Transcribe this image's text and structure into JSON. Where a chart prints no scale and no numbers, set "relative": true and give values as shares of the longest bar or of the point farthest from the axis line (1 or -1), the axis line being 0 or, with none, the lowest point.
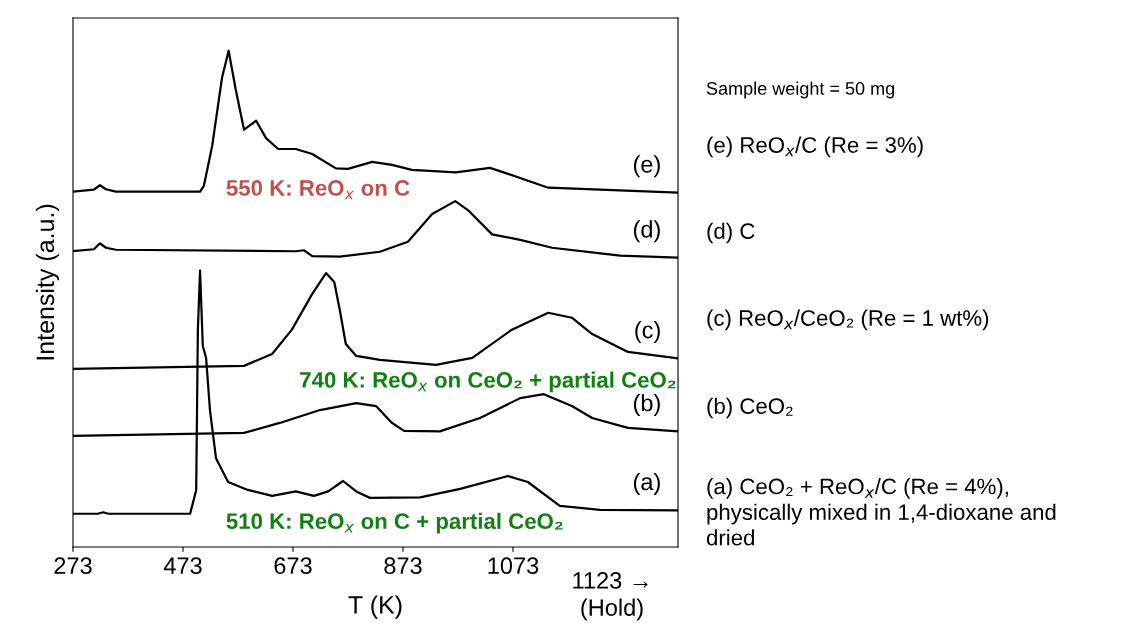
{
  "chart_data": {
    "type": "line",
    "relative": true,
    "xlabel": "T (K)",
    "ylabel": "Intensity (a.u.)",
    "xlim": [
      273,
      1373
    ],
    "xticks": [
      273,
      473,
      673,
      873,
      1073
    ],
    "grid": false,
    "marker": "none",
    "line_style": "solid",
    "series": [
      {
        "name": "(e)",
        "color": "#000000",
        "x": [
          273,
          311,
          322,
          333,
          351,
          504,
          511,
          526,
          544,
          556,
          569,
          584,
          606,
          624,
          646,
          678,
          708,
          751,
          773,
          817,
          853,
          889,
          969,
          1031,
          1064,
          1137,
          1373
        ],
        "values": [
          0.716,
          0.72,
          0.729,
          0.721,
          0.716,
          0.716,
          0.728,
          0.808,
          0.946,
          1.0,
          0.921,
          0.841,
          0.859,
          0.824,
          0.802,
          0.802,
          0.792,
          0.763,
          0.762,
          0.776,
          0.77,
          0.76,
          0.755,
          0.764,
          0.752,
          0.724,
          0.714
        ]
      },
      {
        "name": "(d)",
        "color": "#000000",
        "x": [
          273,
          311,
          322,
          333,
          351,
          678,
          693,
          708,
          758,
          831,
          882,
          926,
          968,
          991,
          1035,
          1086,
          1144,
          1268,
          1373
        ],
        "values": [
          0.596,
          0.6,
          0.612,
          0.603,
          0.599,
          0.596,
          0.598,
          0.586,
          0.585,
          0.595,
          0.615,
          0.671,
          0.697,
          0.679,
          0.63,
          0.619,
          0.603,
          0.587,
          0.583
        ]
      },
      {
        "name": "(c)",
        "color": "#000000",
        "x": [
          273,
          584,
          635,
          671,
          708,
          733,
          748,
          758,
          769,
          788,
          831,
          933,
          999,
          1071,
          1137,
          1180,
          1217,
          1282,
          1373
        ],
        "values": [
          0.359,
          0.365,
          0.389,
          0.438,
          0.51,
          0.552,
          0.534,
          0.478,
          0.409,
          0.385,
          0.377,
          0.367,
          0.381,
          0.438,
          0.472,
          0.462,
          0.429,
          0.393,
          0.38
        ]
      },
      {
        "name": "(b)",
        "color": "#000000",
        "x": [
          273,
          584,
          649,
          722,
          788,
          824,
          853,
          875,
          940,
          1013,
          1086,
          1129,
          1180,
          1217,
          1282,
          1373
        ],
        "values": [
          0.224,
          0.23,
          0.25,
          0.276,
          0.29,
          0.284,
          0.25,
          0.234,
          0.233,
          0.26,
          0.3,
          0.308,
          0.284,
          0.26,
          0.24,
          0.233
        ]
      },
      {
        "name": "(a)",
        "color": "#000000",
        "x": [
          273,
          318,
          328,
          337,
          486,
          497,
          500,
          504,
          509,
          515,
          522,
          533,
          555,
          591,
          635,
          678,
          711,
          737,
          764,
          788,
          813,
          904,
          977,
          1064,
          1100,
          1158,
          1231,
          1373
        ],
        "values": [
          0.067,
          0.067,
          0.07,
          0.067,
          0.067,
          0.115,
          0.437,
          0.557,
          0.405,
          0.381,
          0.276,
          0.179,
          0.131,
          0.115,
          0.103,
          0.112,
          0.103,
          0.112,
          0.133,
          0.112,
          0.099,
          0.1,
          0.117,
          0.143,
          0.131,
          0.083,
          0.075,
          0.074
        ]
      }
    ],
    "annotations": [
      "Sample weight = 50 mg",
      "(e) ReO$_{x}$/C (Re = 3%)",
      "(d) C",
      "(c) ReO$_{x}$/CeO₂ (Re = 1 wt%)",
      "(b) CeO₂",
      "(a) CeO₂ + ReO$_{x}$/C (Re = 4%),\nphysically mixed in 1,4-dioxane and\ndried",
      "550 K: ReO$_{x}$ on C",
      "740 K: ReO$_{x}$ on CeO₂ + partial CeO₂",
      "510 K: ReO$_{x}$ on C + partial CeO₂",
      "1123 →\n(Hold)"
    ]
  }
}
